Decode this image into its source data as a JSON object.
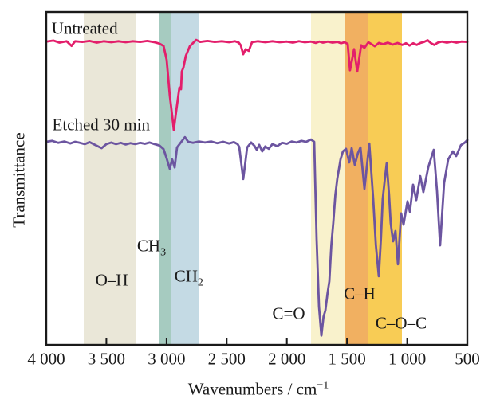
{
  "labels": {
    "ylabel": "Transmittance",
    "xlabel_main": "Wavenumbers / cm",
    "xlabel_sup": "−1"
  },
  "chart_data": {
    "type": "line",
    "title": "",
    "xlabel": "Wavenumbers / cm⁻¹",
    "ylabel": "Transmittance",
    "grid": false,
    "axis_color": "#1a1a1a",
    "x_axis": {
      "min": 500,
      "max": 4000,
      "reversed": true,
      "tick_values": [
        4000,
        3500,
        3000,
        2500,
        2000,
        1500,
        1000,
        500
      ],
      "tick_labels": [
        "4 000",
        "3 500",
        "3 000",
        "2 500",
        "2 000",
        "1 500",
        "1 000",
        "500"
      ]
    },
    "y_axis": {
      "note": "transmittance in arbitrary units, no ticks; values below are % of plot height"
    },
    "bands": [
      {
        "name": "oh-band",
        "from": 3690,
        "to": 3260,
        "color": "#EAE7D8"
      },
      {
        "name": "ch3-band",
        "from": 3060,
        "to": 2960,
        "color": "#A6CBC0"
      },
      {
        "name": "ch2-band",
        "from": 2960,
        "to": 2730,
        "color": "#C4DAE4"
      },
      {
        "name": "co-band",
        "from": 1800,
        "to": 1520,
        "color": "#F9F2CC"
      },
      {
        "name": "ch-band",
        "from": 1520,
        "to": 1330,
        "color": "#F1B061"
      },
      {
        "name": "coc-band",
        "from": 1330,
        "to": 1040,
        "color": "#F8CC55"
      }
    ],
    "annotations": [
      {
        "name": "annotation-oh",
        "text": "O–H",
        "sub": "",
        "wn": 3455,
        "t": 19.4
      },
      {
        "name": "annotation-ch3",
        "text": "CH",
        "sub": "3",
        "wn": 3125,
        "t": 29.7
      },
      {
        "name": "annotation-ch2",
        "text": "CH",
        "sub": "2",
        "wn": 2815,
        "t": 20.6
      },
      {
        "name": "annotation-co",
        "text": "C=O",
        "sub": "",
        "wn": 1985,
        "t": 9.4
      },
      {
        "name": "annotation-ch",
        "text": "C–H",
        "sub": "",
        "wn": 1395,
        "t": 15.3
      },
      {
        "name": "annotation-coc",
        "text": "C–O–C",
        "sub": "",
        "wn": 1050,
        "t": 6.4
      }
    ],
    "series": [
      {
        "name": "Untreated",
        "color": "#E31E6B",
        "label_anchor": {
          "wn": 3955,
          "t": 95.0
        },
        "points": [
          [
            4000,
            91.1
          ],
          [
            3940,
            91.4
          ],
          [
            3890,
            90.8
          ],
          [
            3830,
            91.2
          ],
          [
            3790,
            89.8
          ],
          [
            3760,
            91.2
          ],
          [
            3700,
            91.0
          ],
          [
            3640,
            91.3
          ],
          [
            3580,
            90.8
          ],
          [
            3520,
            91.2
          ],
          [
            3460,
            90.9
          ],
          [
            3400,
            91.2
          ],
          [
            3340,
            90.9
          ],
          [
            3280,
            91.2
          ],
          [
            3220,
            91.0
          ],
          [
            3160,
            91.3
          ],
          [
            3100,
            90.9
          ],
          [
            3060,
            90.5
          ],
          [
            3025,
            89.8
          ],
          [
            2999,
            85.6
          ],
          [
            2973,
            74.9
          ],
          [
            2953,
            68.9
          ],
          [
            2940,
            64.6
          ],
          [
            2920,
            70.1
          ],
          [
            2900,
            75.4
          ],
          [
            2893,
            77.3
          ],
          [
            2880,
            76.8
          ],
          [
            2873,
            82.1
          ],
          [
            2860,
            83.3
          ],
          [
            2840,
            86.8
          ],
          [
            2807,
            89.7
          ],
          [
            2774,
            90.9
          ],
          [
            2754,
            91.6
          ],
          [
            2720,
            91.0
          ],
          [
            2660,
            91.3
          ],
          [
            2600,
            91.0
          ],
          [
            2540,
            91.2
          ],
          [
            2480,
            90.9
          ],
          [
            2430,
            91.2
          ],
          [
            2400,
            90.8
          ],
          [
            2383,
            90.0
          ],
          [
            2363,
            87.3
          ],
          [
            2343,
            88.8
          ],
          [
            2316,
            88.3
          ],
          [
            2290,
            90.9
          ],
          [
            2240,
            91.2
          ],
          [
            2180,
            90.9
          ],
          [
            2120,
            91.2
          ],
          [
            2060,
            90.9
          ],
          [
            2000,
            91.1
          ],
          [
            1950,
            90.8
          ],
          [
            1900,
            91.2
          ],
          [
            1850,
            90.9
          ],
          [
            1800,
            91.1
          ],
          [
            1760,
            90.7
          ],
          [
            1730,
            91.1
          ],
          [
            1700,
            90.8
          ],
          [
            1660,
            91.1
          ],
          [
            1620,
            90.8
          ],
          [
            1580,
            91.0
          ],
          [
            1550,
            90.6
          ],
          [
            1521,
            90.9
          ],
          [
            1494,
            90.4
          ],
          [
            1475,
            82.5
          ],
          [
            1441,
            88.8
          ],
          [
            1415,
            82.1
          ],
          [
            1382,
            90.0
          ],
          [
            1355,
            89.2
          ],
          [
            1322,
            90.9
          ],
          [
            1269,
            89.7
          ],
          [
            1236,
            90.7
          ],
          [
            1200,
            90.3
          ],
          [
            1160,
            90.8
          ],
          [
            1120,
            90.2
          ],
          [
            1080,
            90.7
          ],
          [
            1040,
            90.1
          ],
          [
            1010,
            90.6
          ],
          [
            980,
            89.9
          ],
          [
            950,
            90.6
          ],
          [
            920,
            90.1
          ],
          [
            890,
            90.7
          ],
          [
            860,
            91.0
          ],
          [
            830,
            91.5
          ],
          [
            800,
            90.6
          ],
          [
            775,
            90.1
          ],
          [
            745,
            90.8
          ],
          [
            710,
            91.1
          ],
          [
            670,
            90.8
          ],
          [
            630,
            91.1
          ],
          [
            590,
            90.8
          ],
          [
            550,
            91.1
          ],
          [
            500,
            91.0
          ]
        ]
      },
      {
        "name": "Etched 30 min",
        "color": "#6C55A0",
        "label_anchor": {
          "wn": 3950,
          "t": 66.0
        },
        "points": [
          [
            4000,
            61.0
          ],
          [
            3950,
            61.3
          ],
          [
            3900,
            60.7
          ],
          [
            3850,
            61.1
          ],
          [
            3800,
            60.5
          ],
          [
            3760,
            61.0
          ],
          [
            3720,
            60.7
          ],
          [
            3680,
            60.3
          ],
          [
            3640,
            60.9
          ],
          [
            3590,
            60.0
          ],
          [
            3540,
            59.1
          ],
          [
            3500,
            60.3
          ],
          [
            3460,
            60.8
          ],
          [
            3420,
            60.3
          ],
          [
            3380,
            60.7
          ],
          [
            3340,
            60.2
          ],
          [
            3300,
            60.6
          ],
          [
            3260,
            60.3
          ],
          [
            3220,
            60.7
          ],
          [
            3180,
            60.4
          ],
          [
            3140,
            60.8
          ],
          [
            3100,
            60.3
          ],
          [
            3060,
            59.9
          ],
          [
            3025,
            58.8
          ],
          [
            2999,
            56.0
          ],
          [
            2973,
            52.9
          ],
          [
            2953,
            55.7
          ],
          [
            2933,
            53.3
          ],
          [
            2913,
            59.3
          ],
          [
            2873,
            61.2
          ],
          [
            2847,
            62.4
          ],
          [
            2820,
            61.0
          ],
          [
            2780,
            60.7
          ],
          [
            2730,
            61.1
          ],
          [
            2680,
            60.8
          ],
          [
            2630,
            61.1
          ],
          [
            2580,
            60.6
          ],
          [
            2530,
            61.0
          ],
          [
            2480,
            60.5
          ],
          [
            2440,
            60.9
          ],
          [
            2410,
            60.3
          ],
          [
            2396,
            59.5
          ],
          [
            2363,
            49.8
          ],
          [
            2343,
            55.5
          ],
          [
            2330,
            59.3
          ],
          [
            2297,
            60.8
          ],
          [
            2270,
            59.8
          ],
          [
            2250,
            58.6
          ],
          [
            2230,
            60.1
          ],
          [
            2205,
            58.1
          ],
          [
            2180,
            59.6
          ],
          [
            2150,
            58.9
          ],
          [
            2120,
            60.3
          ],
          [
            2080,
            59.7
          ],
          [
            2040,
            60.7
          ],
          [
            2000,
            60.4
          ],
          [
            1960,
            61.1
          ],
          [
            1920,
            60.8
          ],
          [
            1880,
            61.3
          ],
          [
            1840,
            61.0
          ],
          [
            1799,
            61.7
          ],
          [
            1773,
            61.0
          ],
          [
            1753,
            31.8
          ],
          [
            1733,
            11.5
          ],
          [
            1713,
            2.8
          ],
          [
            1695,
            8.5
          ],
          [
            1680,
            10.3
          ],
          [
            1662,
            15.5
          ],
          [
            1647,
            19.1
          ],
          [
            1630,
            30.0
          ],
          [
            1614,
            36.6
          ],
          [
            1597,
            45.0
          ],
          [
            1581,
            49.8
          ],
          [
            1554,
            55.7
          ],
          [
            1534,
            58.1
          ],
          [
            1508,
            58.9
          ],
          [
            1481,
            54.8
          ],
          [
            1461,
            59.1
          ],
          [
            1435,
            54.1
          ],
          [
            1410,
            57.5
          ],
          [
            1388,
            59.3
          ],
          [
            1355,
            46.9
          ],
          [
            1315,
            60.5
          ],
          [
            1282,
            43.8
          ],
          [
            1260,
            30.0
          ],
          [
            1236,
            20.6
          ],
          [
            1218,
            32.0
          ],
          [
            1203,
            43.8
          ],
          [
            1185,
            50.0
          ],
          [
            1170,
            54.5
          ],
          [
            1150,
            45.0
          ],
          [
            1137,
            36.6
          ],
          [
            1117,
            31.1
          ],
          [
            1097,
            34.2
          ],
          [
            1077,
            24.2
          ],
          [
            1050,
            39.5
          ],
          [
            1030,
            36.1
          ],
          [
            997,
            43.1
          ],
          [
            977,
            40.0
          ],
          [
            951,
            48.1
          ],
          [
            924,
            43.5
          ],
          [
            891,
            50.7
          ],
          [
            865,
            45.9
          ],
          [
            825,
            53.3
          ],
          [
            779,
            58.6
          ],
          [
            752,
            46.2
          ],
          [
            726,
            29.9
          ],
          [
            693,
            48.6
          ],
          [
            659,
            55.7
          ],
          [
            620,
            58.1
          ],
          [
            593,
            56.7
          ],
          [
            553,
            60.0
          ],
          [
            520,
            60.8
          ],
          [
            500,
            61.5
          ]
        ]
      }
    ]
  }
}
